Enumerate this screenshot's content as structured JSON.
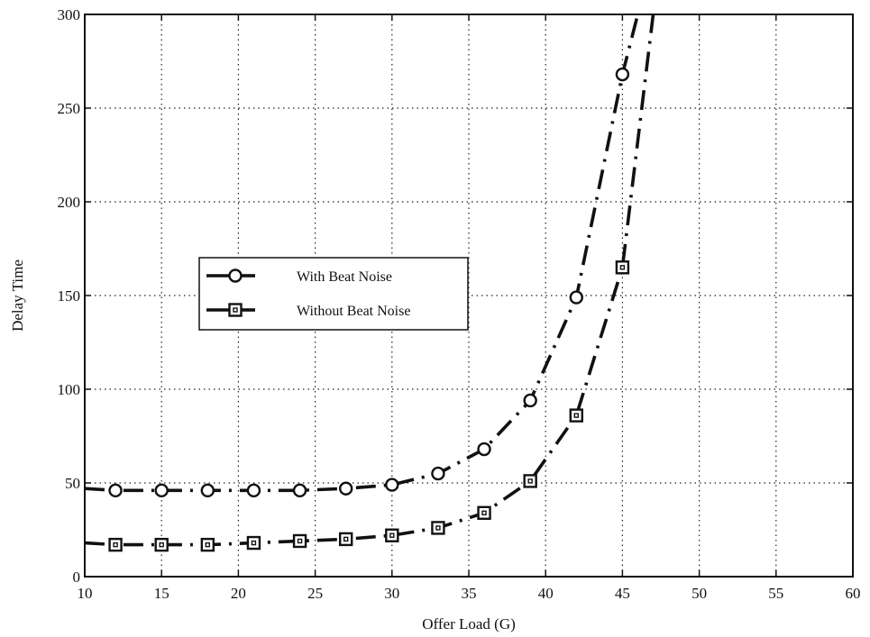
{
  "chart_data": {
    "type": "line",
    "title": "",
    "xlabel": "Offer Load (G)",
    "ylabel": "Delay Time",
    "xlim": [
      10,
      60
    ],
    "ylim": [
      0,
      300
    ],
    "xticks": [
      10,
      15,
      20,
      25,
      30,
      35,
      40,
      45,
      50,
      55,
      60
    ],
    "yticks": [
      0,
      50,
      100,
      150,
      200,
      250,
      300
    ],
    "grid": true,
    "legend_position": "center-left",
    "series": [
      {
        "name": "With Beat Noise",
        "marker": "circle",
        "line_style": "dash-dot",
        "x": [
          10,
          12,
          15,
          18,
          21,
          24,
          27,
          30,
          33,
          36,
          39,
          42,
          45,
          46
        ],
        "y": [
          47,
          46,
          46,
          46,
          46,
          46,
          47,
          49,
          55,
          68,
          94,
          149,
          268,
          300
        ],
        "marked_points": [
          1,
          2,
          3,
          4,
          5,
          6,
          7,
          8,
          9,
          10,
          11,
          12
        ]
      },
      {
        "name": "Without Beat Noise",
        "marker": "square",
        "line_style": "dash-dot",
        "x": [
          10,
          12,
          15,
          18,
          21,
          24,
          27,
          30,
          33,
          36,
          39,
          42,
          45,
          47
        ],
        "y": [
          18,
          17,
          17,
          17,
          18,
          19,
          20,
          22,
          26,
          34,
          51,
          86,
          165,
          300
        ],
        "marked_points": [
          1,
          2,
          3,
          4,
          5,
          6,
          7,
          8,
          9,
          10,
          11,
          12
        ]
      }
    ]
  }
}
